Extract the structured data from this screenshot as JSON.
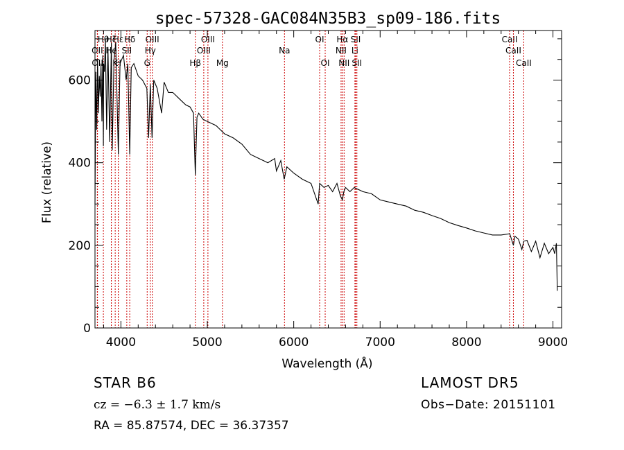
{
  "title": "spec-57328-GAC084N35B3_sp09-186.fits",
  "info": {
    "star": "STAR    B6",
    "survey": "LAMOST  DR5",
    "cz": "cz = −6.3 ± 1.7 km/s",
    "obs_date": "Obs−Date: 20151101",
    "radec": "RA =  85.87574, DEC =  36.37357"
  },
  "colors": {
    "spectrum": "#000000",
    "lines": "#cc0000",
    "frame": "#000000"
  },
  "chart_data": {
    "type": "line",
    "title": "spec-57328-GAC084N35B3_sp09-186.fits",
    "xlabel": "Wavelength (Å)",
    "ylabel": "Flux (relative)",
    "xlim": [
      3700,
      9100
    ],
    "ylim": [
      0,
      720
    ],
    "xticks": [
      4000,
      5000,
      6000,
      7000,
      8000,
      9000
    ],
    "yticks": [
      0,
      200,
      400,
      600
    ],
    "grid": false,
    "series": [
      {
        "x": [
          3700,
          3710,
          3720,
          3730,
          3740,
          3750,
          3760,
          3770,
          3780,
          3790,
          3797,
          3800,
          3810,
          3820,
          3835,
          3850,
          3870,
          3889,
          3900,
          3920,
          3940,
          3970,
          3990,
          4010,
          4030,
          4060,
          4080,
          4102,
          4120,
          4150,
          4200,
          4250,
          4300,
          4320,
          4340,
          4360,
          4380,
          4420,
          4471,
          4500,
          4550,
          4600,
          4650,
          4700,
          4750,
          4800,
          4840,
          4861,
          4880,
          4900,
          4950,
          5000,
          5050,
          5100,
          5150,
          5200,
          5300,
          5400,
          5500,
          5600,
          5700,
          5780,
          5800,
          5850,
          5890,
          5920,
          6000,
          6100,
          6200,
          6283,
          6300,
          6350,
          6400,
          6450,
          6500,
          6540,
          6563,
          6580,
          6600,
          6650,
          6700,
          6750,
          6800,
          6900,
          7000,
          7100,
          7200,
          7300,
          7400,
          7500,
          7600,
          7700,
          7800,
          7900,
          8000,
          8100,
          8200,
          8300,
          8400,
          8500,
          8542,
          8560,
          8600,
          8640,
          8662,
          8700,
          8750,
          8800,
          8850,
          8900,
          8950,
          9000,
          9020,
          9040,
          9050
        ],
        "y": [
          300,
          620,
          480,
          650,
          520,
          610,
          560,
          640,
          500,
          660,
          440,
          640,
          620,
          700,
          480,
          680,
          450,
          690,
          430,
          650,
          690,
          420,
          640,
          650,
          660,
          600,
          640,
          420,
          630,
          640,
          610,
          600,
          580,
          460,
          590,
          460,
          600,
          580,
          520,
          595,
          570,
          570,
          560,
          550,
          540,
          535,
          520,
          370,
          510,
          520,
          505,
          500,
          495,
          490,
          480,
          470,
          460,
          445,
          420,
          410,
          400,
          410,
          380,
          405,
          360,
          390,
          375,
          360,
          350,
          300,
          350,
          340,
          345,
          330,
          350,
          320,
          310,
          330,
          340,
          330,
          340,
          335,
          330,
          325,
          310,
          305,
          300,
          295,
          285,
          280,
          272,
          265,
          255,
          248,
          242,
          235,
          230,
          225,
          225,
          228,
          200,
          222,
          215,
          190,
          210,
          212,
          185,
          210,
          170,
          205,
          180,
          195,
          180,
          205,
          90
        ]
      }
    ],
    "line_markers": [
      {
        "label": "Hθ",
        "x": 3797,
        "row": 0
      },
      {
        "label": "Hζ",
        "x": 3889,
        "row": 0
      },
      {
        "label": "Hε",
        "x": 3970,
        "row": 0
      },
      {
        "label": "Hδ",
        "x": 4102,
        "row": 0
      },
      {
        "label": "OIII",
        "x": 4363,
        "row": 0
      },
      {
        "label": "OIII",
        "x": 5007,
        "row": 0
      },
      {
        "label": "OI",
        "x": 6300,
        "row": 0
      },
      {
        "label": "Hα",
        "x": 6563,
        "row": 0
      },
      {
        "label": "SII",
        "x": 6717,
        "row": 0
      },
      {
        "label": "CaII",
        "x": 8498,
        "row": 0
      },
      {
        "label": "OII",
        "x": 3727,
        "row": 1
      },
      {
        "label": "He",
        "x": 3889,
        "row": 1
      },
      {
        "label": "SII",
        "x": 4068,
        "row": 1
      },
      {
        "label": "Hγ",
        "x": 4340,
        "row": 1
      },
      {
        "label": "OIII",
        "x": 4959,
        "row": 1
      },
      {
        "label": "Na",
        "x": 5893,
        "row": 1
      },
      {
        "label": "NII",
        "x": 6548,
        "row": 1
      },
      {
        "label": "Li",
        "x": 6708,
        "row": 1
      },
      {
        "label": "CaII",
        "x": 8542,
        "row": 1
      },
      {
        "label": "OII",
        "x": 3729,
        "row": 2
      },
      {
        "label": "K",
        "x": 3934,
        "row": 2
      },
      {
        "label": "H",
        "x": 3969,
        "row": 2
      },
      {
        "label": "G",
        "x": 4304,
        "row": 2
      },
      {
        "label": "Hβ",
        "x": 4861,
        "row": 2
      },
      {
        "label": "Mg",
        "x": 5175,
        "row": 2
      },
      {
        "label": "OI",
        "x": 6364,
        "row": 2
      },
      {
        "label": "NII",
        "x": 6583,
        "row": 2
      },
      {
        "label": "SII",
        "x": 6731,
        "row": 2
      },
      {
        "label": "CaII",
        "x": 8662,
        "row": 2
      }
    ]
  }
}
